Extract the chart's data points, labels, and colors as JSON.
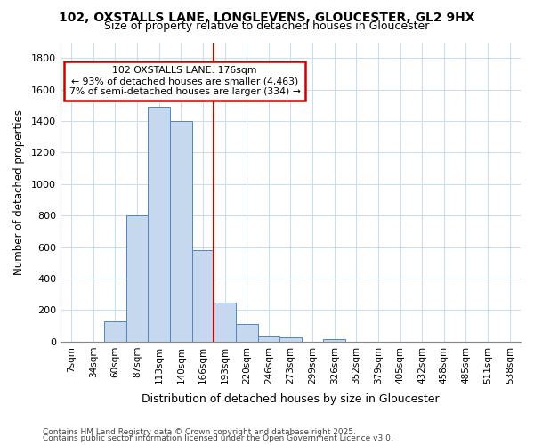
{
  "title": "102, OXSTALLS LANE, LONGLEVENS, GLOUCESTER, GL2 9HX",
  "subtitle": "Size of property relative to detached houses in Gloucester",
  "xlabel": "Distribution of detached houses by size in Gloucester",
  "ylabel": "Number of detached properties",
  "footnote1": "Contains HM Land Registry data © Crown copyright and database right 2025.",
  "footnote2": "Contains public sector information licensed under the Open Government Licence v3.0.",
  "bin_labels": [
    "7sqm",
    "34sqm",
    "60sqm",
    "87sqm",
    "113sqm",
    "140sqm",
    "166sqm",
    "193sqm",
    "220sqm",
    "246sqm",
    "273sqm",
    "299sqm",
    "326sqm",
    "352sqm",
    "379sqm",
    "405sqm",
    "432sqm",
    "458sqm",
    "485sqm",
    "511sqm",
    "538sqm"
  ],
  "bar_values": [
    0,
    0,
    130,
    800,
    1490,
    1400,
    580,
    250,
    110,
    35,
    25,
    0,
    15,
    0,
    0,
    0,
    0,
    0,
    0,
    0,
    0
  ],
  "bar_color": "#c5d8ee",
  "bar_edge_color": "#4f86c0",
  "vline_index": 7,
  "vline_color": "#cc0000",
  "marker_label": "102 OXSTALLS LANE: 176sqm",
  "annotation_line1": "← 93% of detached houses are smaller (4,463)",
  "annotation_line2": "7% of semi-detached houses are larger (334) →",
  "annotation_box_edge_color": "#cc0000",
  "ylim": [
    0,
    1900
  ],
  "yticks": [
    0,
    200,
    400,
    600,
    800,
    1000,
    1200,
    1400,
    1600,
    1800
  ],
  "bg_color": "#ffffff",
  "plot_bg_color": "#ffffff",
  "grid_color": "#ccddee"
}
